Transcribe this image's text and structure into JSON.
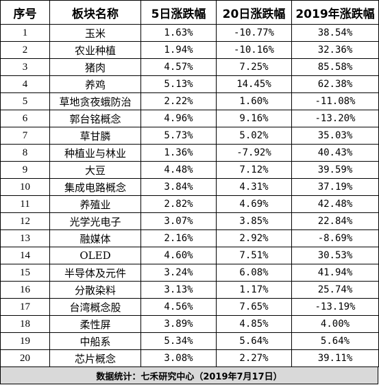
{
  "table": {
    "headers": [
      "序号",
      "板块名称",
      "5日涨跌幅",
      "20日涨跌幅",
      "2019年涨跌幅"
    ],
    "rows": [
      [
        "1",
        "玉米",
        "1.63%",
        "-10.77%",
        "38.54%"
      ],
      [
        "2",
        "农业种植",
        "1.94%",
        "-10.16%",
        "32.36%"
      ],
      [
        "3",
        "猪肉",
        "4.57%",
        "7.25%",
        "85.58%"
      ],
      [
        "4",
        "养鸡",
        "5.13%",
        "14.45%",
        "62.38%"
      ],
      [
        "5",
        "草地贪夜蛾防治",
        "2.22%",
        "1.60%",
        "-11.08%"
      ],
      [
        "6",
        "郭台铭概念",
        "4.96%",
        "9.16%",
        "-13.20%"
      ],
      [
        "7",
        "草甘膦",
        "5.73%",
        "5.02%",
        "35.03%"
      ],
      [
        "8",
        "种植业与林业",
        "1.36%",
        "-7.92%",
        "40.43%"
      ],
      [
        "9",
        "大豆",
        "4.48%",
        "7.12%",
        "39.59%"
      ],
      [
        "10",
        "集成电路概念",
        "3.84%",
        "4.31%",
        "37.19%"
      ],
      [
        "11",
        "养殖业",
        "2.82%",
        "4.69%",
        "42.48%"
      ],
      [
        "12",
        "光学光电子",
        "3.07%",
        "3.85%",
        "22.84%"
      ],
      [
        "13",
        "融媒体",
        "2.16%",
        "2.92%",
        "-8.69%"
      ],
      [
        "14",
        "OLED",
        "4.60%",
        "7.51%",
        "30.53%"
      ],
      [
        "15",
        "半导体及元件",
        "3.24%",
        "6.08%",
        "41.94%"
      ],
      [
        "16",
        "分散染料",
        "3.13%",
        "1.17%",
        "25.74%"
      ],
      [
        "17",
        "台湾概念股",
        "4.56%",
        "7.65%",
        "-13.19%"
      ],
      [
        "18",
        "柔性屏",
        "3.89%",
        "4.85%",
        "4.00%"
      ],
      [
        "19",
        "中船系",
        "5.34%",
        "5.64%",
        "5.64%"
      ],
      [
        "20",
        "芯片概念",
        "3.08%",
        "2.27%",
        "39.11%"
      ]
    ]
  },
  "footer": {
    "source": "数据统计：七禾研究中心（2019年7月17日）"
  },
  "colors": {
    "border": "#000000",
    "footer_bg": "#d9d9d9"
  }
}
